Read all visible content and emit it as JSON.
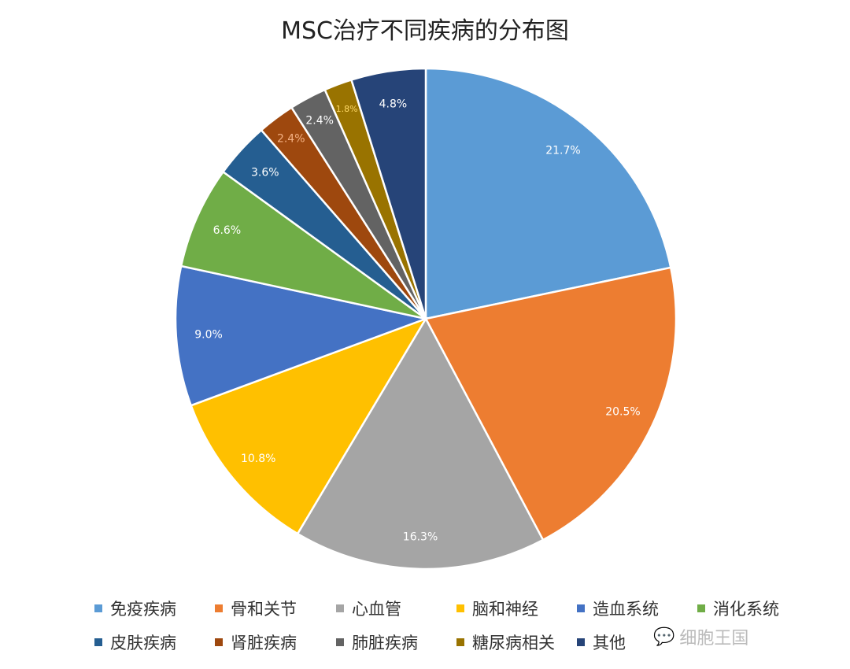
{
  "chart_data": {
    "type": "pie",
    "title": "MSC治疗不同疾病的分布图",
    "categories": [
      "免疫疾病",
      "骨和关节",
      "心血管",
      "脑和神经",
      "造血系统",
      "消化系统",
      "皮肤疾病",
      "肾脏疾病",
      "肺脏疾病",
      "糖尿病相关",
      "其他"
    ],
    "values": [
      21.7,
      20.5,
      16.3,
      10.8,
      9.0,
      6.6,
      3.6,
      2.4,
      2.4,
      1.8,
      4.8
    ],
    "data_labels": [
      "21.7%",
      "20.5%",
      "16.3%",
      "10.8%",
      "9.0%",
      "6.6%",
      "3.6%",
      "2.4%",
      "2.4%",
      "1.8%",
      "4.8%"
    ],
    "colors": [
      "#5b9bd5",
      "#ed7d31",
      "#a5a5a5",
      "#ffc000",
      "#4472c4",
      "#70ad47",
      "#255e91",
      "#9e480e",
      "#636363",
      "#997300",
      "#264478"
    ],
    "label_colors": [
      "#ffffff",
      "#ffffff",
      "#ffffff",
      "#ffffff",
      "#ffffff",
      "#ffffff",
      "#ffffff",
      "#f4b183",
      "#ffffff",
      "#ffd966",
      "#ffffff"
    ],
    "start_angle": "12 o'clock",
    "direction": "clockwise",
    "legend_position": "bottom"
  },
  "watermark": "细胞王国"
}
